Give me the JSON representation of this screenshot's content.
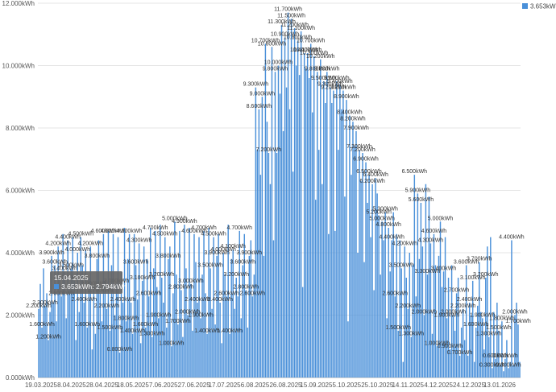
{
  "chart_data": {
    "type": "bar",
    "series": [
      {
        "name": "3.653kWh",
        "color": "#4a90d9"
      }
    ],
    "y_unit": "kWh",
    "ylim": [
      0,
      12
    ],
    "y_ticks": [
      "0.000kWh",
      "2.000kWh",
      "4.000kWh",
      "6.000kWh",
      "8.000kWh",
      "10.000kWh",
      "12.000kWh"
    ],
    "x_ticks": [
      "19.03.2025",
      "8.04.2025",
      "28.04.2025",
      "18.05.2025",
      "7.06.2025",
      "27.06.2025",
      "17.07.2025",
      "6.08.2025",
      "26.08.2025",
      "15.09.2025",
      "5.10.2025",
      "25.10.2025",
      "14.11.2025",
      "4.12.2025",
      "24.12.2025",
      "13.01.2026"
    ],
    "grid": true,
    "legend_position": "top-right",
    "tooltip": {
      "date": "15.04.2025",
      "line": "3.653kWh: 2.794kWh"
    },
    "values": [
      2.2,
      3.0,
      1.6,
      3.5,
      2.3,
      2.7,
      1.2,
      2.1,
      3.9,
      2.4,
      3.6,
      1.8,
      4.2,
      3.2,
      2.6,
      4.6,
      3.4,
      1.9,
      4.4,
      2.8,
      3.5,
      4.5,
      3.1,
      1.2,
      4.0,
      2.1,
      4.5,
      3.6,
      2.4,
      4.1,
      1.6,
      3.2,
      4.2,
      0.9,
      2.9,
      1.4,
      3.8,
      4.4,
      2.7,
      1.8,
      4.6,
      3.1,
      2.2,
      4.7,
      1.5,
      3.6,
      4.6,
      2.0,
      3.0,
      4.5,
      0.8,
      3.4,
      2.4,
      4.8,
      1.8,
      3.8,
      4.6,
      2.4,
      1.4,
      4.6,
      3.6,
      2.5,
      4.3,
      1.1,
      3.1,
      4.2,
      1.6,
      3.8,
      2.6,
      4.8,
      1.3,
      3.5,
      4.7,
      2.9,
      1.9,
      4.9,
      3.2,
      2.4,
      4.5,
      1.6,
      3.8,
      4.2,
      1.0,
      2.7,
      5.0,
      3.3,
      1.7,
      4.7,
      2.8,
      1.3,
      4.9,
      3.5,
      2.0,
      4.8,
      3.0,
      1.5,
      4.6,
      3.7,
      2.4,
      4.5,
      1.9,
      3.3,
      4.7,
      2.7,
      1.4,
      4.8,
      3.5,
      2.2,
      4.5,
      1.7,
      3.9,
      4.6,
      2.4,
      1.1,
      4.0,
      3.3,
      2.6,
      4.9,
      1.4,
      3.8,
      4.1,
      2.2,
      3.2,
      2.6,
      4.7,
      1.9,
      3.6,
      4.6,
      2.8,
      1.6,
      3.9,
      4.4,
      2.6,
      3.3,
      9.3,
      7.3,
      8.6,
      6.5,
      9.0,
      3.9,
      10.7,
      8.2,
      7.2,
      6.2,
      10.6,
      4.4,
      9.8,
      7.2,
      10.0,
      9.1,
      11.3,
      7.9,
      10.9,
      9.3,
      11.7,
      8.6,
      11.5,
      6.6,
      11.2,
      10.0,
      10.8,
      9.7,
      11.1,
      2.9,
      10.4,
      9.9,
      10.4,
      9.6,
      10.7,
      8.5,
      10.3,
      5.7,
      9.8,
      7.3,
      10.2,
      6.2,
      9.5,
      8.8,
      9.8,
      4.6,
      9.3,
      8.8,
      9.2,
      4.7,
      9.5,
      7.3,
      9.4,
      8.6,
      9.2,
      5.8,
      8.9,
      1.8,
      8.4,
      6.5,
      8.2,
      7.4,
      7.9,
      4.0,
      7.3,
      6.3,
      7.2,
      3.7,
      6.9,
      5.6,
      6.5,
      4.5,
      6.2,
      2.8,
      6.4,
      5.9,
      5.2,
      3.3,
      5.0,
      4.4,
      5.3,
      1.9,
      4.8,
      3.4,
      4.4,
      5.3,
      2.6,
      4.6,
      1.5,
      4.4,
      3.5,
      0.5,
      4.2,
      3.2,
      2.2,
      4.0,
      1.3,
      3.6,
      6.5,
      2.6,
      5.9,
      3.8,
      5.6,
      4.2,
      2.0,
      6.2,
      3.3,
      5.8,
      4.3,
      1.4,
      4.6,
      3.6,
      1.0,
      3.9,
      5.0,
      2.9,
      3.4,
      4.5,
      1.9,
      3.2,
      0.9,
      3.6,
      2.0,
      1.5,
      2.7,
      3.2,
      0.7,
      1.6,
      2.2,
      1.2,
      3.6,
      0.7,
      2.4,
      2.0,
      3.1,
      0.5,
      1.6,
      2.3,
      3.7,
      2.1,
      1.9,
      0.9,
      3.2,
      4.2,
      1.3,
      4.5,
      0.3,
      2.1,
      0.6,
      2.4,
      1.5,
      0.4,
      1.8,
      0.2,
      0.6,
      1.2,
      0.3,
      0.5,
      4.4,
      0.4,
      2.0,
      2.4,
      1.7,
      0.5
    ]
  }
}
